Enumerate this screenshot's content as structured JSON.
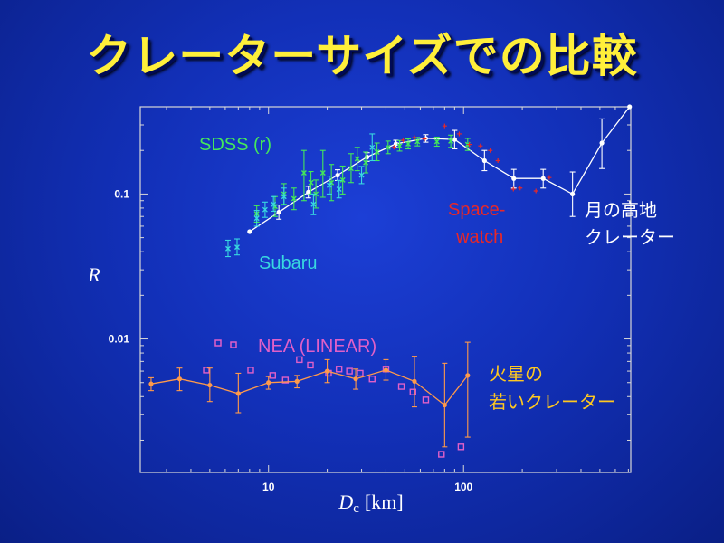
{
  "slide": {
    "title": "クレーターサイズでの比較"
  },
  "colors": {
    "background": "#1230b8",
    "title": "#ffef3a",
    "lunar": "#ffffff",
    "sdss": "#44e85a",
    "subaru": "#38d8e0",
    "spacewatch": "#e82828",
    "nea": "#e060c8",
    "mars": "#ff9a4a",
    "mars_label": "#ffc820"
  },
  "chart_data": {
    "type": "scatter",
    "x_scale": "log",
    "y_scale": "log",
    "xlim": [
      2.2,
      720
    ],
    "ylim": [
      0.0012,
      0.4
    ],
    "xlabel": "D",
    "xlabel_sub": "c",
    "xlabel_unit": "[km]",
    "ylabel": "R",
    "x_ticks": [
      {
        "value": 10,
        "label": "10"
      },
      {
        "value": 100,
        "label": "100"
      }
    ],
    "y_ticks": [
      {
        "value": 0.1,
        "label": "0.1"
      },
      {
        "value": 0.01,
        "label": "0.01"
      }
    ],
    "series": [
      {
        "name": "月の高地クレーター",
        "label_lines": [
          "月の高地",
          "クレーター"
        ],
        "key": "lunar",
        "connected": true,
        "marker": "dot",
        "points": [
          {
            "x": 8.0,
            "y": 0.055
          },
          {
            "x": 11.3,
            "y": 0.075,
            "lo": 0.067,
            "hi": 0.084
          },
          {
            "x": 16.0,
            "y": 0.103,
            "lo": 0.094,
            "hi": 0.113
          },
          {
            "x": 22.6,
            "y": 0.135,
            "lo": 0.124,
            "hi": 0.147
          },
          {
            "x": 32.0,
            "y": 0.18,
            "lo": 0.168,
            "hi": 0.193
          },
          {
            "x": 45.0,
            "y": 0.222,
            "lo": 0.21,
            "hi": 0.235
          },
          {
            "x": 64.0,
            "y": 0.242,
            "lo": 0.228,
            "hi": 0.257
          },
          {
            "x": 90.0,
            "y": 0.238,
            "lo": 0.205,
            "hi": 0.275
          },
          {
            "x": 128.0,
            "y": 0.17,
            "lo": 0.145,
            "hi": 0.2
          },
          {
            "x": 181.0,
            "y": 0.128,
            "lo": 0.11,
            "hi": 0.148
          },
          {
            "x": 256.0,
            "y": 0.128,
            "lo": 0.11,
            "hi": 0.148
          },
          {
            "x": 362.0,
            "y": 0.1,
            "lo": 0.07,
            "hi": 0.142
          },
          {
            "x": 512.0,
            "y": 0.225,
            "lo": 0.15,
            "hi": 0.33
          },
          {
            "x": 710.0,
            "y": 0.4
          }
        ]
      },
      {
        "name": "SDSS (r)",
        "key": "sdss",
        "connected": false,
        "marker": "x",
        "points": [
          {
            "x": 8.7,
            "y": 0.073,
            "lo": 0.064,
            "hi": 0.083
          },
          {
            "x": 10.8,
            "y": 0.082,
            "lo": 0.07,
            "hi": 0.096
          },
          {
            "x": 12.0,
            "y": 0.1,
            "lo": 0.085,
            "hi": 0.118
          },
          {
            "x": 13.5,
            "y": 0.093,
            "lo": 0.078,
            "hi": 0.11
          },
          {
            "x": 15.2,
            "y": 0.14,
            "lo": 0.09,
            "hi": 0.2
          },
          {
            "x": 16.5,
            "y": 0.12,
            "lo": 0.1,
            "hi": 0.143
          },
          {
            "x": 17.5,
            "y": 0.1,
            "lo": 0.08,
            "hi": 0.125
          },
          {
            "x": 19.0,
            "y": 0.14,
            "lo": 0.095,
            "hi": 0.2
          },
          {
            "x": 21.0,
            "y": 0.12,
            "lo": 0.09,
            "hi": 0.16
          },
          {
            "x": 24.0,
            "y": 0.125,
            "lo": 0.1,
            "hi": 0.156
          },
          {
            "x": 26.5,
            "y": 0.15,
            "lo": 0.12,
            "hi": 0.19
          },
          {
            "x": 28.5,
            "y": 0.175,
            "lo": 0.145,
            "hi": 0.21
          },
          {
            "x": 31.5,
            "y": 0.165,
            "lo": 0.14,
            "hi": 0.195
          },
          {
            "x": 36.0,
            "y": 0.195,
            "lo": 0.17,
            "hi": 0.225
          },
          {
            "x": 41.0,
            "y": 0.21,
            "lo": 0.19,
            "hi": 0.232
          },
          {
            "x": 47.0,
            "y": 0.215,
            "lo": 0.198,
            "hi": 0.234
          },
          {
            "x": 52.0,
            "y": 0.222,
            "lo": 0.205,
            "hi": 0.24
          },
          {
            "x": 58.0,
            "y": 0.23,
            "lo": 0.215,
            "hi": 0.246
          },
          {
            "x": 73.0,
            "y": 0.23,
            "lo": 0.214,
            "hi": 0.247
          },
          {
            "x": 86.0,
            "y": 0.232,
            "lo": 0.21,
            "hi": 0.255
          },
          {
            "x": 105.0,
            "y": 0.22,
            "lo": 0.2,
            "hi": 0.242
          }
        ]
      },
      {
        "name": "Subaru",
        "key": "subaru",
        "connected": false,
        "marker": "x",
        "points": [
          {
            "x": 6.2,
            "y": 0.042,
            "lo": 0.037,
            "hi": 0.048
          },
          {
            "x": 6.9,
            "y": 0.043,
            "lo": 0.038,
            "hi": 0.049
          },
          {
            "x": 8.7,
            "y": 0.068,
            "lo": 0.06,
            "hi": 0.077
          },
          {
            "x": 9.6,
            "y": 0.078,
            "lo": 0.069,
            "hi": 0.088
          },
          {
            "x": 10.6,
            "y": 0.085,
            "lo": 0.076,
            "hi": 0.096
          },
          {
            "x": 12.0,
            "y": 0.096,
            "lo": 0.084,
            "hi": 0.11
          },
          {
            "x": 17.0,
            "y": 0.085,
            "lo": 0.072,
            "hi": 0.1
          },
          {
            "x": 20.5,
            "y": 0.115,
            "lo": 0.1,
            "hi": 0.133
          },
          {
            "x": 23.0,
            "y": 0.108,
            "lo": 0.094,
            "hi": 0.124
          },
          {
            "x": 30.0,
            "y": 0.135,
            "lo": 0.118,
            "hi": 0.155
          },
          {
            "x": 34.0,
            "y": 0.21,
            "lo": 0.17,
            "hi": 0.26
          }
        ]
      },
      {
        "name": "Spacewatch",
        "label_lines": [
          "Space-",
          "watch"
        ],
        "key": "spacewatch",
        "connected": false,
        "marker": "plus",
        "points": [
          {
            "x": 44.0,
            "y": 0.21
          },
          {
            "x": 49.0,
            "y": 0.235
          },
          {
            "x": 56.0,
            "y": 0.245
          },
          {
            "x": 63.0,
            "y": 0.24
          },
          {
            "x": 80.0,
            "y": 0.295
          },
          {
            "x": 95.0,
            "y": 0.26
          },
          {
            "x": 107.0,
            "y": 0.22
          },
          {
            "x": 122.0,
            "y": 0.215
          },
          {
            "x": 137.0,
            "y": 0.2
          },
          {
            "x": 150.0,
            "y": 0.17
          },
          {
            "x": 180.0,
            "y": 0.108
          },
          {
            "x": 195.0,
            "y": 0.11
          },
          {
            "x": 235.0,
            "y": 0.105
          },
          {
            "x": 275.0,
            "y": 0.13
          }
        ]
      },
      {
        "name": "NEA (LINEAR)",
        "key": "nea",
        "connected": false,
        "marker": "square",
        "points": [
          {
            "x": 4.8,
            "y": 0.0061
          },
          {
            "x": 8.1,
            "y": 0.0061
          },
          {
            "x": 10.5,
            "y": 0.0056
          },
          {
            "x": 12.2,
            "y": 0.0052
          },
          {
            "x": 14.4,
            "y": 0.0072
          },
          {
            "x": 16.4,
            "y": 0.0066
          },
          {
            "x": 20.3,
            "y": 0.0058
          },
          {
            "x": 23.0,
            "y": 0.0062
          },
          {
            "x": 26.0,
            "y": 0.006
          },
          {
            "x": 29.5,
            "y": 0.0058
          },
          {
            "x": 34.0,
            "y": 0.0053
          },
          {
            "x": 40.0,
            "y": 0.0062
          },
          {
            "x": 48.0,
            "y": 0.0047
          },
          {
            "x": 55.0,
            "y": 0.0043
          },
          {
            "x": 64.0,
            "y": 0.0038
          },
          {
            "x": 77.0,
            "y": 0.0016
          },
          {
            "x": 97.0,
            "y": 0.0018
          }
        ]
      },
      {
        "name": "火星の若いクレーター",
        "label_lines": [
          "火星の",
          "若いクレーター"
        ],
        "key": "mars",
        "connected": true,
        "marker": "dot",
        "points": [
          {
            "x": 2.5,
            "y": 0.0049,
            "lo": 0.0044,
            "hi": 0.0054
          },
          {
            "x": 3.5,
            "y": 0.0053,
            "lo": 0.0044,
            "hi": 0.0063
          },
          {
            "x": 5.0,
            "y": 0.0048,
            "lo": 0.0037,
            "hi": 0.0063
          },
          {
            "x": 7.0,
            "y": 0.0042,
            "lo": 0.0031,
            "hi": 0.0058
          },
          {
            "x": 10.0,
            "y": 0.005,
            "lo": 0.0045,
            "hi": 0.0055
          },
          {
            "x": 14.0,
            "y": 0.0051,
            "lo": 0.0046,
            "hi": 0.0056
          },
          {
            "x": 20.0,
            "y": 0.006,
            "lo": 0.005,
            "hi": 0.0072
          },
          {
            "x": 28.0,
            "y": 0.0053,
            "lo": 0.0045,
            "hi": 0.0062
          },
          {
            "x": 40.0,
            "y": 0.0061,
            "lo": 0.0052,
            "hi": 0.0072
          },
          {
            "x": 56.0,
            "y": 0.0051,
            "lo": 0.0034,
            "hi": 0.0076
          },
          {
            "x": 80.0,
            "y": 0.0035,
            "lo": 0.0018,
            "hi": 0.0068
          },
          {
            "x": 105.0,
            "y": 0.0056,
            "lo": 0.0021,
            "hi": 0.0095
          }
        ]
      }
    ],
    "annotations": {
      "sdss": "SDSS (r)",
      "subaru": "Subaru",
      "spacewatch": [
        "Space-",
        "watch"
      ],
      "lunar": [
        "月の高地",
        "クレーター"
      ],
      "nea": "NEA (LINEAR)",
      "mars": [
        "火星の",
        "若いクレーター"
      ]
    }
  }
}
